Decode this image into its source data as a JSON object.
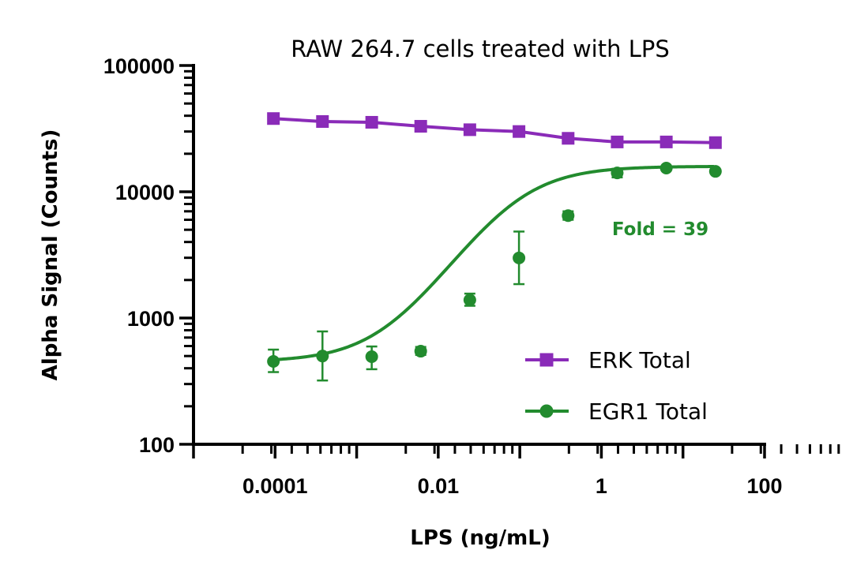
{
  "chart_data": {
    "type": "scatter",
    "title": "RAW 264.7 cells treated with LPS",
    "xlabel": "LPS (ng/mL)",
    "ylabel": "Alpha Signal (Counts)",
    "xscale": "log",
    "yscale": "log",
    "xlim": [
      1e-05,
      100
    ],
    "ylim": [
      100,
      100000
    ],
    "xticks": [
      0.0001,
      0.01,
      1,
      100
    ],
    "xtick_labels": [
      "0.0001",
      "0.01",
      "1",
      "100"
    ],
    "yticks": [
      100,
      1000,
      10000,
      100000
    ],
    "ytick_labels": [
      "100",
      "1000",
      "10000",
      "100000"
    ],
    "x": [
      9.54e-05,
      0.000381,
      0.00153,
      0.0061,
      0.0244,
      0.0977,
      0.391,
      1.5625,
      6.25,
      25
    ],
    "series": [
      {
        "name": "ERK Total",
        "color": "#8A2BB8",
        "marker": "square",
        "values": [
          38000,
          36000,
          35500,
          33000,
          31000,
          30000,
          26500,
          24800,
          24800,
          24500
        ]
      },
      {
        "name": "EGR1 Total",
        "color": "#228B2E",
        "marker": "circle",
        "values": [
          453,
          500,
          494,
          546,
          1390,
          2990,
          6470,
          14100,
          15400,
          14500
        ],
        "error_low": [
          373,
          320,
          393,
          510,
          1250,
          1855,
          6000,
          13000,
          15000,
          14000
        ],
        "error_high": [
          562,
          783,
          595,
          590,
          1560,
          4840,
          7000,
          15200,
          15800,
          15000
        ],
        "fit": {
          "bottom": 450,
          "top": 15900,
          "ec50": 0.085,
          "hill": 1.0
        }
      }
    ],
    "annotations": [
      {
        "text": "Fold = 39",
        "color": "#228B2E"
      }
    ],
    "legend": {
      "placement": "bottom-right"
    },
    "grid": false
  }
}
